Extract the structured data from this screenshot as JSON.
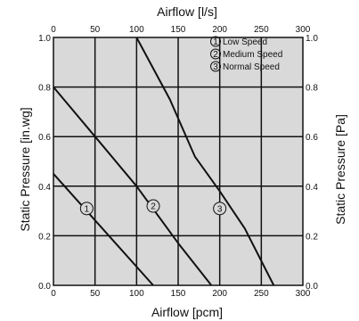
{
  "chart_data": {
    "type": "line",
    "title": "",
    "xlabel": "Airflow  [pcm]",
    "x2label": "Airflow [l/s]",
    "ylabel": "Static Pressure [in.wg]",
    "y2label": "Static Pressure [Pa]",
    "xlim": [
      0,
      300
    ],
    "ylim": [
      0,
      1.0
    ],
    "grid": true,
    "background": "#d9d9d9",
    "line_color": "#111111",
    "x_ticks": [
      "0",
      "50",
      "100",
      "150",
      "200",
      "250",
      "300"
    ],
    "x2_ticks": [
      "0",
      "50",
      "100",
      "150",
      "200",
      "250",
      "300"
    ],
    "y_ticks": [
      "0.0",
      "0.2",
      "0.4",
      "0.6",
      "0.8",
      "1.0"
    ],
    "y2_ticks": [
      "0.0",
      "0.2",
      "0.4",
      "0.6",
      "0.8",
      "1.0"
    ],
    "legend": {
      "placement": "top-right",
      "items": [
        {
          "marker": "1",
          "label": "Low Speed"
        },
        {
          "marker": "2",
          "label": "Medium Speed"
        },
        {
          "marker": "3",
          "label": "Normal Speed"
        }
      ]
    },
    "series": [
      {
        "marker": "1",
        "x": [
          0,
          40,
          80,
          120
        ],
        "y": [
          0.45,
          0.3,
          0.15,
          0.0
        ],
        "label_at": [
          40,
          0.31
        ]
      },
      {
        "marker": "2",
        "x": [
          0,
          50,
          100,
          150,
          190
        ],
        "y": [
          0.8,
          0.6,
          0.4,
          0.17,
          0.0
        ],
        "label_at": [
          120,
          0.32
        ]
      },
      {
        "marker": "3",
        "x": [
          100,
          140,
          170,
          200,
          230,
          265
        ],
        "y": [
          1.0,
          0.75,
          0.52,
          0.38,
          0.23,
          0.0
        ],
        "label_at": [
          200,
          0.31
        ]
      }
    ]
  }
}
